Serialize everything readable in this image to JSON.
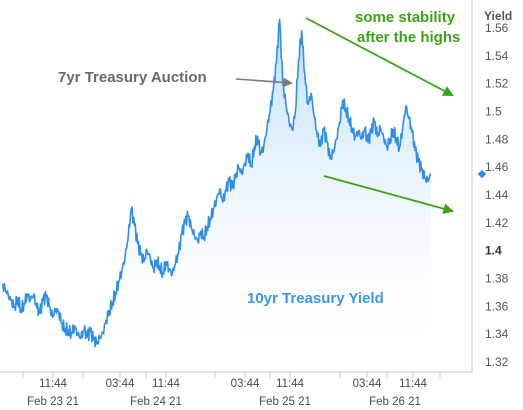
{
  "chart_data": {
    "type": "area",
    "ylabel": "Yield",
    "series_label": "10yr Treasury Yield",
    "ylim": [
      1.315,
      1.585
    ],
    "y_ticks": [
      "1.56",
      "1.54",
      "1.52",
      "1.5",
      "1.48",
      "1.46",
      "1.44",
      "1.42",
      "1.4",
      "1.38",
      "1.36",
      "1.34",
      "1.32"
    ],
    "bold_y_tick": "1.4",
    "x_ticks_time": [
      "11:44",
      "03:44",
      "11:44",
      "03:44",
      "11:44",
      "03:44",
      "11:44"
    ],
    "x_ticks_day": [
      "Feb 23 21",
      "Feb 24 21",
      "Feb 25 21",
      "Feb 26 21"
    ],
    "last_value": 1.455,
    "annotations": {
      "auction": "7yr Treasury Auction",
      "stability_line1": "some stability",
      "stability_line2": "after the highs"
    },
    "colors": {
      "line": "#2f8ee8",
      "fill_top": "#cfe5f9",
      "arrow_green": "#3aa31a",
      "arrow_gray": "#7a7a7a"
    },
    "series": [
      {
        "values": [
          1.375,
          1.372,
          1.368,
          1.364,
          1.36,
          1.366,
          1.358,
          1.362,
          1.369,
          1.365,
          1.368,
          1.359,
          1.355,
          1.364,
          1.367,
          1.36,
          1.352,
          1.358,
          1.356,
          1.348,
          1.344,
          1.343,
          1.341,
          1.346,
          1.34,
          1.337,
          1.343,
          1.338,
          1.342,
          1.336,
          1.333,
          1.337,
          1.341,
          1.35,
          1.357,
          1.363,
          1.37,
          1.378,
          1.386,
          1.395,
          1.41,
          1.43,
          1.418,
          1.405,
          1.397,
          1.392,
          1.4,
          1.395,
          1.387,
          1.393,
          1.389,
          1.384,
          1.392,
          1.387,
          1.383,
          1.391,
          1.398,
          1.412,
          1.42,
          1.425,
          1.416,
          1.411,
          1.407,
          1.414,
          1.41,
          1.417,
          1.423,
          1.43,
          1.437,
          1.444,
          1.435,
          1.443,
          1.45,
          1.445,
          1.452,
          1.46,
          1.455,
          1.463,
          1.47,
          1.461,
          1.475,
          1.482,
          1.47,
          1.475,
          1.488,
          1.5,
          1.515,
          1.535,
          1.566,
          1.52,
          1.505,
          1.493,
          1.487,
          1.5,
          1.537,
          1.558,
          1.527,
          1.505,
          1.513,
          1.496,
          1.482,
          1.475,
          1.487,
          1.478,
          1.466,
          1.47,
          1.48,
          1.492,
          1.508,
          1.502,
          1.495,
          1.488,
          1.482,
          1.486,
          1.48,
          1.487,
          1.478,
          1.485,
          1.493,
          1.482,
          1.488,
          1.481,
          1.475,
          1.48,
          1.487,
          1.481,
          1.474,
          1.488,
          1.504,
          1.495,
          1.485,
          1.472,
          1.464,
          1.458,
          1.452,
          1.45,
          1.455
        ]
      }
    ]
  }
}
